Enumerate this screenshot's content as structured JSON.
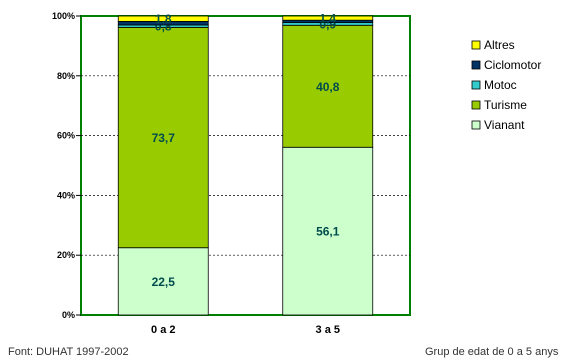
{
  "chart_data": {
    "type": "bar",
    "stacked": true,
    "normalized": true,
    "categories": [
      "0 a 2",
      "3 a 5"
    ],
    "series": [
      {
        "name": "Vianant",
        "values": [
          22.5,
          56.1
        ],
        "labels": [
          "22,5",
          "56,1"
        ],
        "color": "#ccffcc"
      },
      {
        "name": "Turisme",
        "values": [
          73.7,
          40.8
        ],
        "labels": [
          "73,7",
          "40,8"
        ],
        "color": "#99cc00"
      },
      {
        "name": "Motoc",
        "values": [
          0.8,
          0.9
        ],
        "labels": [
          "0,8",
          "0,9"
        ],
        "color": "#33cccc"
      },
      {
        "name": "Ciclomotor",
        "values": [
          1.2,
          0.8
        ],
        "labels": [
          "",
          ""
        ],
        "color": "#003366"
      },
      {
        "name": "Altres",
        "values": [
          1.8,
          1.4
        ],
        "labels": [
          "1,8",
          "1,4"
        ],
        "color": "#ffff00"
      }
    ],
    "y_ticks": [
      "0%",
      "20%",
      "40%",
      "60%",
      "80%",
      "100%"
    ],
    "ylim": [
      0,
      100
    ],
    "grid": true,
    "legend_position": "right"
  },
  "footer": {
    "source": "Font: DUHAT 1997-2002",
    "group": "Grup de edat de 0 a 5 anys"
  },
  "colors": {
    "plot_border": "#008000",
    "label_text": "#004c4c",
    "axis_text": "#000000"
  }
}
